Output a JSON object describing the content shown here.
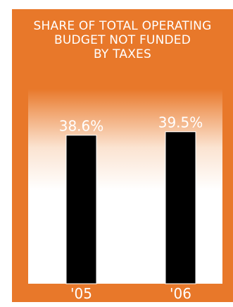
{
  "title_lines": [
    "SHARE OF TOTAL OPERATING",
    "BUDGET NOT FUNDED",
    "BY TAXES"
  ],
  "colors": {
    "panel": "#e8782a",
    "bar": "#000000",
    "text": "#ffffff"
  },
  "chart_data": {
    "type": "bar",
    "title": "SHARE OF TOTAL OPERATING BUDGET NOT FUNDED BY TAXES",
    "categories": [
      "'05",
      "'06"
    ],
    "values": [
      38.6,
      39.5
    ],
    "value_labels": [
      "38.6%",
      "39.5%"
    ],
    "unit": "%",
    "grid": false,
    "legend": "none"
  }
}
